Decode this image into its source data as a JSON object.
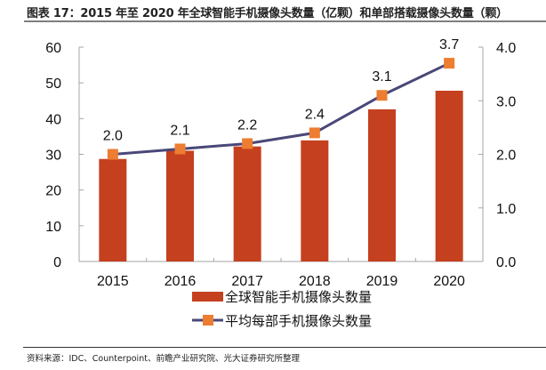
{
  "title": "图表 17：2015 年至 2020 年全球智能手机摄像头数量（亿颗）和单部搭载摄像头数量（颗）",
  "source": "资料来源：IDC、Counterpoint、前瞻产业研究院、光大证券研究所整理",
  "colors": {
    "bar": "#C5401F",
    "line": "#4A4878",
    "marker": "#ED7D31",
    "axis": "#A6A6A6"
  },
  "chart_data": {
    "type": "bar+line",
    "title": "图表 17：2015 年至 2020 年全球智能手机摄像头数量（亿颗）和单部搭载摄像头数量（颗）",
    "categories": [
      "2015",
      "2016",
      "2017",
      "2018",
      "2019",
      "2020"
    ],
    "series": [
      {
        "name": "全球智能手机摄像头数量",
        "type": "bar",
        "axis": "left",
        "values": [
          28.7,
          31.0,
          32.2,
          33.9,
          42.6,
          47.8
        ]
      },
      {
        "name": "平均每部手机摄像头数量",
        "type": "line",
        "axis": "right",
        "values": [
          2.0,
          2.1,
          2.2,
          2.4,
          3.1,
          3.7
        ],
        "data_labels": [
          "2.0",
          "2.1",
          "2.2",
          "2.4",
          "3.1",
          "3.7"
        ]
      }
    ],
    "y_left": {
      "min": 0,
      "max": 60,
      "ticks": [
        "0",
        "10",
        "20",
        "30",
        "40",
        "50",
        "60"
      ]
    },
    "y_right": {
      "min": 0,
      "max": 4,
      "ticks": [
        "0.0",
        "1.0",
        "2.0",
        "3.0",
        "4.0"
      ]
    },
    "xlabel": "",
    "ylabel_left": "",
    "ylabel_right": "",
    "grid": false,
    "legend": {
      "placement": "bottom-center",
      "entries": [
        "全球智能手机摄像头数量",
        "平均每部手机摄像头数量"
      ]
    }
  }
}
